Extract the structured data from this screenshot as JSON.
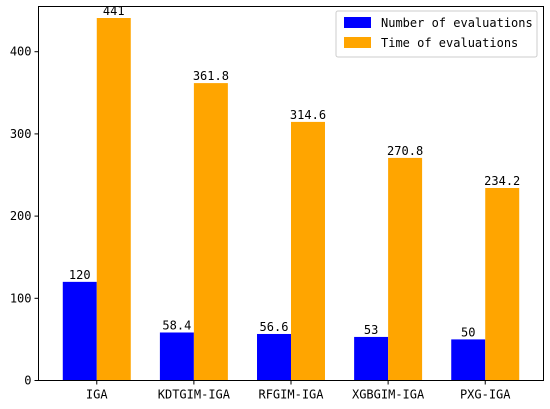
{
  "chart_data": {
    "type": "bar",
    "categories": [
      "IGA",
      "KDTGIM-IGA",
      "RFGIM-IGA",
      "XGBGIM-IGA",
      "PXG-IGA"
    ],
    "series": [
      {
        "name": "Number of evaluations",
        "values": [
          120,
          58.4,
          56.6,
          53,
          50
        ],
        "labels": [
          "120",
          "58.4",
          "56.6",
          "53",
          "50"
        ],
        "color": "#0000ff"
      },
      {
        "name": "Time of evaluations",
        "values": [
          441,
          361.8,
          314.6,
          270.8,
          234.2
        ],
        "labels": [
          "441",
          "361.8",
          "314.6",
          "270.8",
          "234.2"
        ],
        "color": "#ffa500"
      }
    ],
    "ylim": [
      0,
      455
    ],
    "yticks": [
      0,
      100,
      200,
      300,
      400
    ],
    "legend": "top-right",
    "grid": false
  }
}
